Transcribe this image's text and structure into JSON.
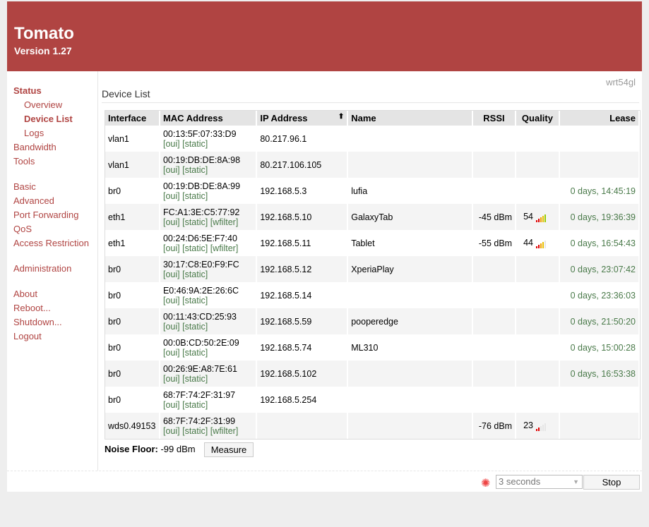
{
  "header": {
    "title": "Tomato",
    "version": "Version 1.27"
  },
  "router_name": "wrt54gl",
  "sidebar": [
    {
      "label": "Status",
      "cls": "bold"
    },
    {
      "label": "Overview",
      "cls": "sub"
    },
    {
      "label": "Device List",
      "cls": "sub bold"
    },
    {
      "label": "Logs",
      "cls": "sub"
    },
    {
      "label": "Bandwidth",
      "cls": ""
    },
    {
      "label": "Tools",
      "cls": ""
    },
    {
      "gap": true
    },
    {
      "label": "Basic",
      "cls": ""
    },
    {
      "label": "Advanced",
      "cls": ""
    },
    {
      "label": "Port Forwarding",
      "cls": ""
    },
    {
      "label": "QoS",
      "cls": ""
    },
    {
      "label": "Access Restriction",
      "cls": ""
    },
    {
      "gap": true
    },
    {
      "label": "Administration",
      "cls": ""
    },
    {
      "gap": true
    },
    {
      "label": "About",
      "cls": ""
    },
    {
      "label": "Reboot...",
      "cls": ""
    },
    {
      "label": "Shutdown...",
      "cls": ""
    },
    {
      "label": "Logout",
      "cls": ""
    }
  ],
  "page_title": "Device List",
  "table": {
    "columns": [
      "Interface",
      "MAC Address",
      "IP Address",
      "Name",
      "RSSI",
      "Quality",
      "Lease"
    ],
    "sort_icon": "arrow-up-icon",
    "rows": [
      {
        "iface": "vlan1",
        "mac": "00:13:5F:07:33:D9",
        "tags": [
          "[oui]",
          "[static]"
        ],
        "ip": "80.217.96.1",
        "name": "",
        "rssi": "",
        "quality": "",
        "lease": ""
      },
      {
        "iface": "vlan1",
        "mac": "00:19:DB:DE:8A:98",
        "tags": [
          "[oui]",
          "[static]"
        ],
        "ip": "80.217.106.105",
        "name": "",
        "rssi": "",
        "quality": "",
        "lease": ""
      },
      {
        "iface": "br0",
        "mac": "00:19:DB:DE:8A:99",
        "tags": [
          "[oui]",
          "[static]"
        ],
        "ip": "192.168.5.3",
        "name": "lufia",
        "rssi": "",
        "quality": "",
        "lease": "0 days, 14:45:19"
      },
      {
        "iface": "eth1",
        "mac": "FC:A1:3E:C5:77:92",
        "tags": [
          "[oui]",
          "[static]",
          "[wfilter]"
        ],
        "ip": "192.168.5.10",
        "name": "GalaxyTab",
        "rssi": "-45 dBm",
        "quality": "54",
        "lease": "0 days, 19:36:39"
      },
      {
        "iface": "eth1",
        "mac": "00:24:D6:5E:F7:40",
        "tags": [
          "[oui]",
          "[static]",
          "[wfilter]"
        ],
        "ip": "192.168.5.11",
        "name": "Tablet",
        "rssi": "-55 dBm",
        "quality": "44",
        "lease": "0 days, 16:54:43"
      },
      {
        "iface": "br0",
        "mac": "30:17:C8:E0:F9:FC",
        "tags": [
          "[oui]",
          "[static]"
        ],
        "ip": "192.168.5.12",
        "name": "XperiaPlay",
        "rssi": "",
        "quality": "",
        "lease": "0 days, 23:07:42"
      },
      {
        "iface": "br0",
        "mac": "E0:46:9A:2E:26:6C",
        "tags": [
          "[oui]",
          "[static]"
        ],
        "ip": "192.168.5.14",
        "name": "",
        "rssi": "",
        "quality": "",
        "lease": "0 days, 23:36:03"
      },
      {
        "iface": "br0",
        "mac": "00:11:43:CD:25:93",
        "tags": [
          "[oui]",
          "[static]"
        ],
        "ip": "192.168.5.59",
        "name": "pooperedge",
        "rssi": "",
        "quality": "",
        "lease": "0 days, 21:50:20"
      },
      {
        "iface": "br0",
        "mac": "00:0B:CD:50:2E:09",
        "tags": [
          "[oui]",
          "[static]"
        ],
        "ip": "192.168.5.74",
        "name": "ML310",
        "rssi": "",
        "quality": "",
        "lease": "0 days, 15:00:28"
      },
      {
        "iface": "br0",
        "mac": "00:26:9E:A8:7E:61",
        "tags": [
          "[oui]",
          "[static]"
        ],
        "ip": "192.168.5.102",
        "name": "",
        "rssi": "",
        "quality": "",
        "lease": "0 days, 16:53:38"
      },
      {
        "iface": "br0",
        "mac": "68:7F:74:2F:31:97",
        "tags": [
          "[oui]",
          "[static]"
        ],
        "ip": "192.168.5.254",
        "name": "",
        "rssi": "",
        "quality": "",
        "lease": ""
      },
      {
        "iface": "wds0.49153",
        "mac": "68:7F:74:2F:31:99",
        "tags": [
          "[oui]",
          "[static]",
          "[wfilter]"
        ],
        "ip": "",
        "name": "",
        "rssi": "-76 dBm",
        "quality": "23",
        "lease": ""
      }
    ]
  },
  "quality_bar_colors": [
    "#e00000",
    "#e00000",
    "#f0a000",
    "#e8c000",
    "#99cc00"
  ],
  "noise": {
    "label": "Noise Floor:",
    "value": "-99 dBm",
    "button": "Measure"
  },
  "footer": {
    "interval": "3 seconds",
    "stop": "Stop",
    "spinner_icon": "spinner-icon"
  }
}
